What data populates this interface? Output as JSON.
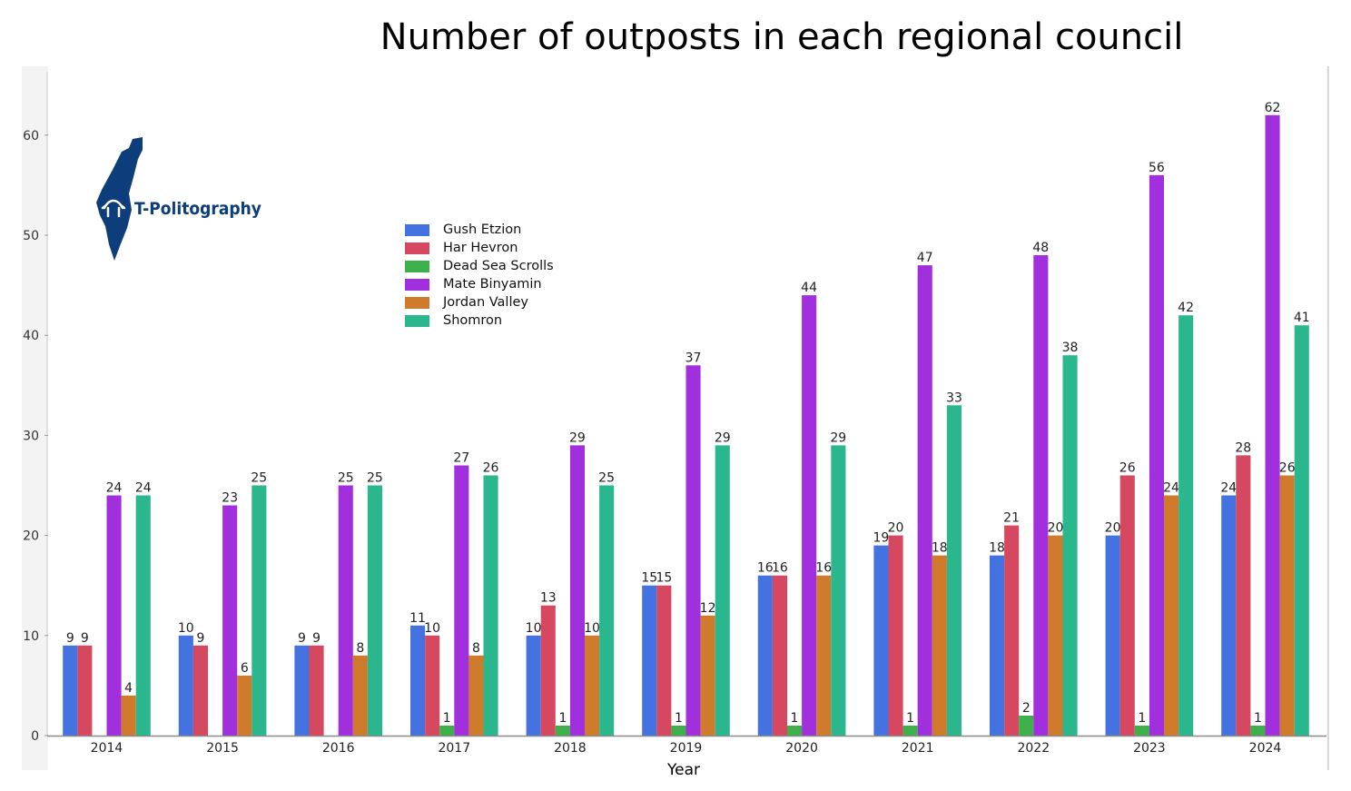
{
  "chart_data": {
    "type": "bar",
    "title": "Number of outposts in each regional council",
    "xlabel": "Year",
    "ylabel": "",
    "ylim": [
      0,
      65
    ],
    "yticks": [
      0,
      10,
      20,
      30,
      40,
      50,
      60
    ],
    "grid": false,
    "legend_position": "top-left",
    "categories": [
      "2014",
      "2015",
      "2016",
      "2017",
      "2018",
      "2019",
      "2020",
      "2021",
      "2022",
      "2023",
      "2024"
    ],
    "series": [
      {
        "name": "Gush Etzion",
        "color": "#4472e0",
        "values": [
          9,
          10,
          9,
          11,
          10,
          15,
          16,
          19,
          18,
          20,
          24
        ]
      },
      {
        "name": "Har Hevron",
        "color": "#d64860",
        "values": [
          9,
          9,
          9,
          10,
          13,
          15,
          16,
          20,
          21,
          26,
          28
        ]
      },
      {
        "name": "Dead Sea Scrolls",
        "color": "#3eb04a",
        "values": [
          null,
          null,
          null,
          1,
          1,
          1,
          1,
          1,
          2,
          1,
          1
        ]
      },
      {
        "name": "Mate Binyamin",
        "color": "#a12fde",
        "values": [
          24,
          23,
          25,
          27,
          29,
          37,
          44,
          47,
          48,
          56,
          62
        ]
      },
      {
        "name": "Jordan Valley",
        "color": "#d07a2c",
        "values": [
          4,
          6,
          8,
          8,
          10,
          12,
          16,
          18,
          20,
          24,
          26
        ]
      },
      {
        "name": "Shomron",
        "color": "#2bb78e",
        "values": [
          24,
          25,
          25,
          26,
          25,
          29,
          29,
          33,
          38,
          42,
          41
        ]
      }
    ]
  },
  "logo": {
    "text": "T-Politography",
    "icon": "israel-map-icon",
    "color": "#0d3d7a"
  }
}
